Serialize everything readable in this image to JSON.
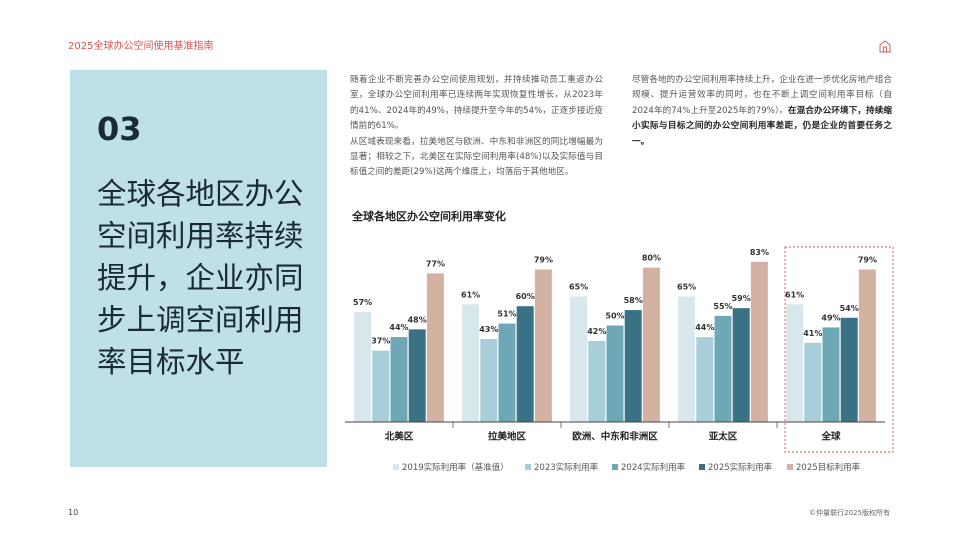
{
  "header": {
    "title": "2025全球办公空间使用基准指南"
  },
  "section": {
    "number": "03",
    "heading": "全球各地区办公空间利用率持续提升，企业亦同步上调空间利用率目标水平"
  },
  "body": {
    "column1": [
      "随着企业不断完善办公空间使用规划，并持续推动员工重返办公室，全球办公空间利用率已连续两年实现恢复性增长，从2023年的41%、2024年的49%，持续提升至今年的54%，正逐步接近疫情前的61%。",
      "从区域表现来看，拉美地区与欧洲、中东和非洲区的同比增幅最为显著；相较之下，北美区在实际空间利用率(48%)以及实际值与目标值之间的差距(29%)这两个维度上，均落后于其他地区。"
    ],
    "column2": {
      "text": "尽管各地的办公空间利用率持续上升，企业在进一步优化房地产组合规模、提升运营效率的同时，也在不断上调空间利用率目标（自2024年的74%上升至2025年的79%）。",
      "bold": "在混合办公环境下，持续缩小实际与目标之间的办公空间利用率差距，仍是企业的首要任务之一。"
    }
  },
  "chart_data": {
    "type": "bar",
    "title": "全球各地区办公空间利用率变化",
    "categories": [
      "北美区",
      "拉美地区",
      "欧洲、中东和非洲区",
      "亚太区",
      "全球"
    ],
    "series": [
      {
        "name": "2019实际利用率（基准值）",
        "color": "#d7e7eb",
        "values": [
          57,
          61,
          65,
          65,
          61
        ],
        "value_labels": [
          "57%",
          "61%",
          "65%",
          "65%",
          "61%"
        ]
      },
      {
        "name": "2023实际利用率",
        "color": "#a8cfd9",
        "values": [
          37,
          43,
          42,
          44,
          41
        ],
        "value_labels": [
          "37%",
          "43%",
          "42%",
          "44%",
          "41%"
        ]
      },
      {
        "name": "2024实际利用率",
        "color": "#6ea8b7",
        "values": [
          44,
          51,
          50,
          55,
          49
        ],
        "value_labels": [
          "44%",
          "51%",
          "50%",
          "55%",
          "49%"
        ]
      },
      {
        "name": "2025实际利用率",
        "color": "#3a7285",
        "values": [
          48,
          60,
          58,
          59,
          54
        ],
        "value_labels": [
          "48%",
          "60%",
          "58%",
          "59%",
          "54%"
        ]
      },
      {
        "name": "2025目标利用率",
        "color": "#d3b2a3",
        "values": [
          77,
          79,
          80,
          83,
          79
        ],
        "value_labels": [
          "77%",
          "79%",
          "80%",
          "83%",
          "79%"
        ]
      }
    ]
  },
  "footer": {
    "page": "10",
    "copyright": "©仲量联行2025版权所有"
  }
}
